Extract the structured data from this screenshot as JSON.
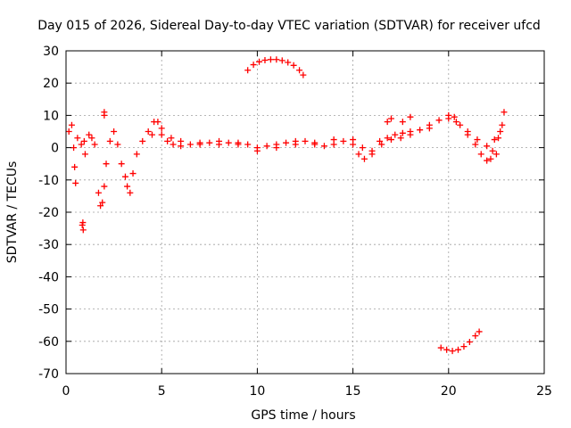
{
  "chart_data": {
    "type": "scatter",
    "title": "Day 015 of 2026, Sidereal Day-to-day VTEC variation (SDTVAR) for receiver ufcd",
    "xlabel": "GPS time / hours",
    "ylabel": "SDTVAR / TECUs",
    "xlim": [
      0,
      25
    ],
    "ylim": [
      -70,
      30
    ],
    "xticks": [
      "0",
      "5",
      "10",
      "15",
      "20",
      "25"
    ],
    "yticks": [
      "30",
      "20",
      "10",
      "0",
      "-10",
      "-20",
      "-30",
      "-40",
      "-50",
      "-60",
      "-70"
    ],
    "grid": true,
    "legend": "none",
    "marker": "+",
    "series": [
      {
        "name": "main-band",
        "color": "#ff0000",
        "points": [
          [
            0.15,
            5
          ],
          [
            0.3,
            7
          ],
          [
            0.4,
            0
          ],
          [
            0.45,
            -6
          ],
          [
            0.5,
            -11
          ],
          [
            0.6,
            3
          ],
          [
            0.8,
            1
          ],
          [
            0.95,
            2
          ],
          [
            1.0,
            -2
          ],
          [
            1.2,
            4
          ],
          [
            1.35,
            3
          ],
          [
            1.5,
            1
          ],
          [
            1.7,
            -14
          ],
          [
            1.8,
            -18
          ],
          [
            1.9,
            -17
          ],
          [
            2.0,
            -12
          ],
          [
            2.1,
            -5
          ],
          [
            2.3,
            2
          ],
          [
            2.5,
            5
          ],
          [
            2.7,
            1
          ],
          [
            2.9,
            -5
          ],
          [
            3.1,
            -9
          ],
          [
            3.2,
            -12
          ],
          [
            3.35,
            -14
          ],
          [
            3.5,
            -8
          ],
          [
            3.7,
            -2
          ],
          [
            4.0,
            2
          ],
          [
            4.3,
            5
          ],
          [
            4.6,
            8
          ],
          [
            4.8,
            8
          ],
          [
            5.0,
            4
          ],
          [
            5.3,
            2
          ],
          [
            5.6,
            1
          ],
          [
            6.0,
            0.5
          ],
          [
            6.5,
            1
          ],
          [
            7.0,
            1
          ],
          [
            7.5,
            1.5
          ],
          [
            8.0,
            2
          ],
          [
            8.5,
            1.5
          ],
          [
            9.0,
            1.5
          ],
          [
            9.5,
            1
          ],
          [
            10.0,
            0
          ],
          [
            10.5,
            0.5
          ],
          [
            11.0,
            1
          ],
          [
            11.5,
            1.5
          ],
          [
            12.0,
            2
          ],
          [
            12.5,
            2
          ],
          [
            13.0,
            1
          ],
          [
            13.5,
            0.5
          ],
          [
            14.0,
            1
          ],
          [
            14.5,
            2
          ],
          [
            15.0,
            1
          ],
          [
            15.3,
            -2
          ],
          [
            15.6,
            -3.5
          ],
          [
            16.0,
            -2
          ],
          [
            16.4,
            2
          ],
          [
            16.8,
            3
          ],
          [
            17.2,
            4
          ],
          [
            17.6,
            4.5
          ],
          [
            18.0,
            5
          ],
          [
            18.5,
            5.5
          ],
          [
            19.0,
            7
          ],
          [
            19.5,
            8.5
          ],
          [
            20.0,
            10
          ],
          [
            20.3,
            9.5
          ],
          [
            20.6,
            7
          ],
          [
            21.0,
            4
          ],
          [
            21.4,
            1
          ],
          [
            21.7,
            -2
          ],
          [
            22.0,
            -4
          ],
          [
            22.3,
            -1
          ],
          [
            22.6,
            3
          ],
          [
            22.8,
            7
          ],
          [
            22.9,
            11
          ]
        ]
      },
      {
        "name": "upper-band",
        "color": "#ff0000",
        "points": [
          [
            4.5,
            4
          ],
          [
            5.0,
            6
          ],
          [
            5.5,
            3
          ],
          [
            6.0,
            2
          ],
          [
            7.0,
            1.5
          ],
          [
            8.0,
            1
          ],
          [
            9.0,
            1
          ],
          [
            10.0,
            -1
          ],
          [
            11.0,
            0
          ],
          [
            12.0,
            1
          ],
          [
            13.0,
            1.5
          ],
          [
            14.0,
            2.5
          ],
          [
            15.0,
            2.5
          ],
          [
            15.5,
            0
          ],
          [
            16.0,
            -1
          ],
          [
            16.5,
            1
          ],
          [
            17.0,
            2.5
          ],
          [
            17.5,
            3
          ],
          [
            18.0,
            4
          ],
          [
            19.0,
            6
          ],
          [
            20.0,
            9
          ],
          [
            20.4,
            8
          ],
          [
            21.0,
            5
          ],
          [
            21.5,
            2.5
          ],
          [
            22.0,
            0.5
          ],
          [
            22.4,
            2.5
          ],
          [
            22.7,
            5
          ]
        ]
      },
      {
        "name": "short-arc-high",
        "color": "#ff0000",
        "points": [
          [
            9.5,
            24
          ],
          [
            9.8,
            25.7
          ],
          [
            10.1,
            26.6
          ],
          [
            10.4,
            27.1
          ],
          [
            10.7,
            27.3
          ],
          [
            11.0,
            27.3
          ],
          [
            11.3,
            27.0
          ],
          [
            11.6,
            26.4
          ],
          [
            11.9,
            25.5
          ],
          [
            12.2,
            24
          ],
          [
            12.4,
            22.5
          ]
        ]
      },
      {
        "name": "short-arc-low",
        "color": "#ff0000",
        "points": [
          [
            19.6,
            -62
          ],
          [
            19.9,
            -62.6
          ],
          [
            20.2,
            -63
          ],
          [
            20.5,
            -62.6
          ],
          [
            20.8,
            -61.6
          ],
          [
            21.1,
            -60.2
          ],
          [
            21.4,
            -58.3
          ],
          [
            21.6,
            -57
          ]
        ]
      },
      {
        "name": "scatter-extras",
        "color": "#ff0000",
        "points": [
          [
            0.85,
            -24
          ],
          [
            0.9,
            -25.5
          ],
          [
            0.88,
            -23.2
          ],
          [
            16.8,
            8
          ],
          [
            17.0,
            9
          ],
          [
            17.6,
            8
          ],
          [
            18.0,
            9.5
          ],
          [
            2.0,
            10
          ],
          [
            2.0,
            11
          ],
          [
            22.5,
            -2
          ],
          [
            22.2,
            -3.5
          ]
        ]
      }
    ]
  }
}
